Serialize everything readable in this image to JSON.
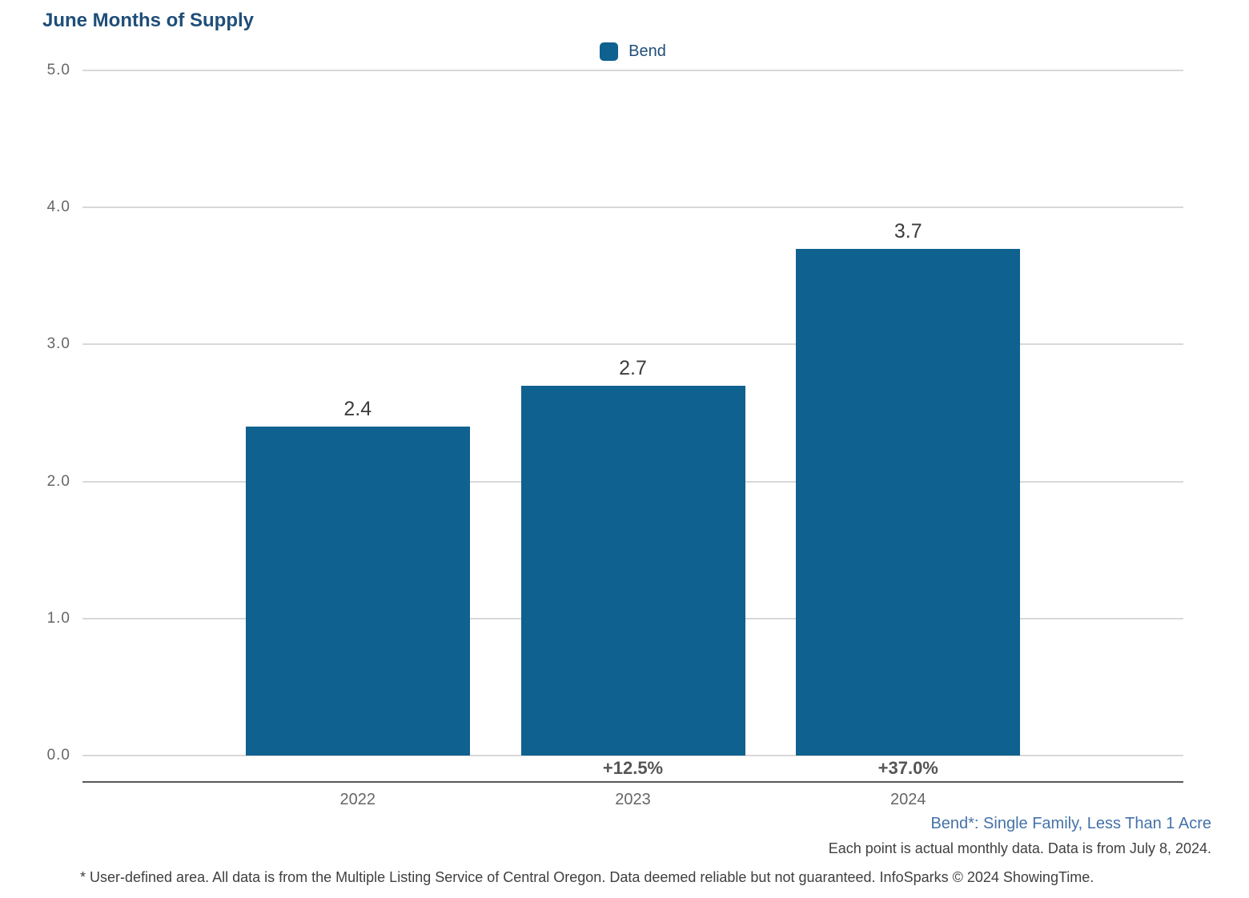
{
  "title": "June Months of Supply",
  "legend": {
    "label": "Bend",
    "swatch_color": "#0F618F"
  },
  "chart_data": {
    "type": "bar",
    "title": "June Months of Supply",
    "series_name": "Bend",
    "categories": [
      "2022",
      "2023",
      "2024"
    ],
    "values": [
      2.4,
      2.7,
      3.7
    ],
    "value_labels": [
      "2.4",
      "2.7",
      "3.7"
    ],
    "pct_change_labels": [
      "",
      "+12.5%",
      "+37.0%"
    ],
    "xlabel": "",
    "ylabel": "",
    "ylim": [
      0,
      5
    ],
    "ytick_values": [
      5.0,
      4.0,
      3.0,
      2.0,
      1.0,
      0.0
    ],
    "ytick_labels": [
      "5.0",
      "4.0",
      "3.0",
      "2.0",
      "1.0",
      "0.0"
    ],
    "grid": true,
    "legend_position": "top-center",
    "bar_color": "#0F618F"
  },
  "footnotes": {
    "series_note": "Bend*: Single Family, Less Than 1 Acre",
    "data_note": "Each point is actual monthly data. Data is from July 8, 2024.",
    "disclaimer": "* User-defined area. All data is from the Multiple Listing Service of Central Oregon. Data deemed reliable but not guaranteed. InfoSparks © 2024 ShowingTime."
  },
  "colors": {
    "bar": "#0F618F",
    "title_text": "#1F4E79",
    "footnote_blue": "#4472A8",
    "gridline": "#d8d8d8",
    "axis_line": "#57585a",
    "tick_text": "#666666"
  }
}
